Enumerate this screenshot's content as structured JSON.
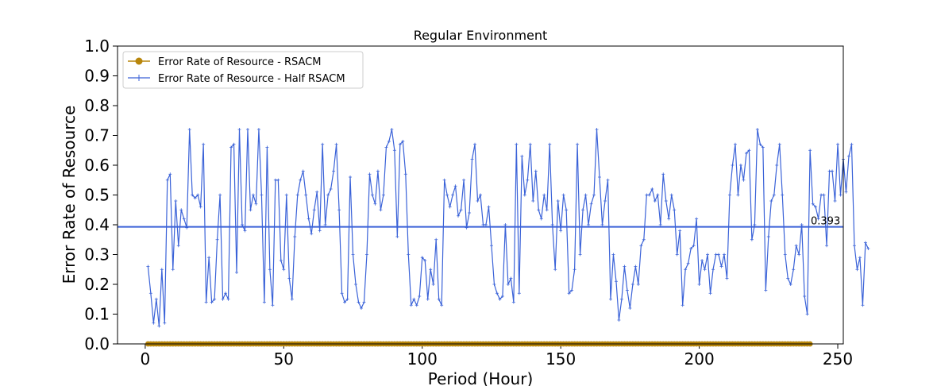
{
  "chart_data": {
    "type": "line",
    "title": "Regular Environment",
    "xlabel": "Period (Hour)",
    "ylabel": "Error Rate of Resource",
    "xlim": [
      -10,
      252
    ],
    "ylim": [
      0.0,
      1.0
    ],
    "xticks": [
      "0",
      "50",
      "100",
      "150",
      "200",
      "250"
    ],
    "yticks": [
      "0.0",
      "0.1",
      "0.2",
      "0.3",
      "0.4",
      "0.5",
      "0.6",
      "0.7",
      "0.8",
      "0.9",
      "1.0"
    ],
    "legend_position": "top-left",
    "colors": {
      "rsacm": "#b8860b",
      "half": "#3a62d8",
      "mean": "#3a62d8"
    },
    "mean_line": {
      "value": 0.393,
      "label": "0.393"
    },
    "series": [
      {
        "name": "Error Rate of Resource - RSACM",
        "marker": "circle",
        "x_start": 1,
        "x_end": 240,
        "values": [
          0.0
        ]
      },
      {
        "name": "Error Rate of Resource - Half RSACM",
        "marker": "plus",
        "x_start": 1,
        "values": [
          0.26,
          0.17,
          0.07,
          0.15,
          0.06,
          0.25,
          0.07,
          0.55,
          0.57,
          0.25,
          0.48,
          0.33,
          0.45,
          0.42,
          0.39,
          0.72,
          0.5,
          0.49,
          0.5,
          0.46,
          0.67,
          0.14,
          0.29,
          0.14,
          0.15,
          0.35,
          0.5,
          0.15,
          0.17,
          0.15,
          0.66,
          0.67,
          0.24,
          0.72,
          0.4,
          0.38,
          0.72,
          0.45,
          0.5,
          0.47,
          0.72,
          0.5,
          0.14,
          0.66,
          0.25,
          0.13,
          0.55,
          0.55,
          0.28,
          0.25,
          0.5,
          0.22,
          0.15,
          0.36,
          0.5,
          0.55,
          0.58,
          0.5,
          0.42,
          0.37,
          0.45,
          0.51,
          0.38,
          0.67,
          0.4,
          0.5,
          0.52,
          0.58,
          0.67,
          0.45,
          0.17,
          0.14,
          0.15,
          0.56,
          0.3,
          0.2,
          0.14,
          0.12,
          0.14,
          0.3,
          0.57,
          0.5,
          0.47,
          0.58,
          0.45,
          0.5,
          0.66,
          0.68,
          0.72,
          0.65,
          0.36,
          0.67,
          0.68,
          0.57,
          0.3,
          0.13,
          0.15,
          0.13,
          0.16,
          0.29,
          0.28,
          0.15,
          0.25,
          0.2,
          0.35,
          0.15,
          0.13,
          0.55,
          0.5,
          0.46,
          0.5,
          0.53,
          0.43,
          0.45,
          0.55,
          0.39,
          0.44,
          0.62,
          0.67,
          0.48,
          0.5,
          0.4,
          0.4,
          0.46,
          0.33,
          0.2,
          0.17,
          0.15,
          0.16,
          0.4,
          0.2,
          0.22,
          0.14,
          0.67,
          0.17,
          0.63,
          0.5,
          0.55,
          0.67,
          0.48,
          0.58,
          0.45,
          0.42,
          0.5,
          0.45,
          0.67,
          0.4,
          0.25,
          0.48,
          0.38,
          0.5,
          0.45,
          0.17,
          0.18,
          0.25,
          0.67,
          0.3,
          0.45,
          0.5,
          0.4,
          0.47,
          0.5,
          0.72,
          0.56,
          0.4,
          0.48,
          0.55,
          0.15,
          0.3,
          0.21,
          0.08,
          0.15,
          0.26,
          0.18,
          0.12,
          0.2,
          0.26,
          0.2,
          0.33,
          0.35,
          0.5,
          0.5,
          0.52,
          0.48,
          0.5,
          0.4,
          0.57,
          0.48,
          0.42,
          0.5,
          0.45,
          0.3,
          0.38,
          0.13,
          0.25,
          0.27,
          0.32,
          0.33,
          0.42,
          0.2,
          0.28,
          0.25,
          0.3,
          0.17,
          0.25,
          0.3,
          0.3,
          0.26,
          0.3,
          0.22,
          0.5,
          0.6,
          0.67,
          0.5,
          0.6,
          0.55,
          0.64,
          0.65,
          0.35,
          0.4,
          0.72,
          0.67,
          0.66,
          0.18,
          0.36,
          0.48,
          0.5,
          0.6,
          0.67,
          0.5,
          0.3,
          0.22,
          0.2,
          0.25,
          0.33,
          0.3,
          0.4,
          0.16,
          0.1,
          0.65,
          0.47,
          0.46,
          0.42,
          0.5,
          0.5,
          0.33,
          0.58,
          0.58,
          0.48,
          0.67,
          0.5,
          0.62,
          0.51,
          0.63,
          0.67,
          0.33,
          0.25,
          0.29,
          0.13,
          0.34,
          0.32
        ]
      }
    ]
  }
}
